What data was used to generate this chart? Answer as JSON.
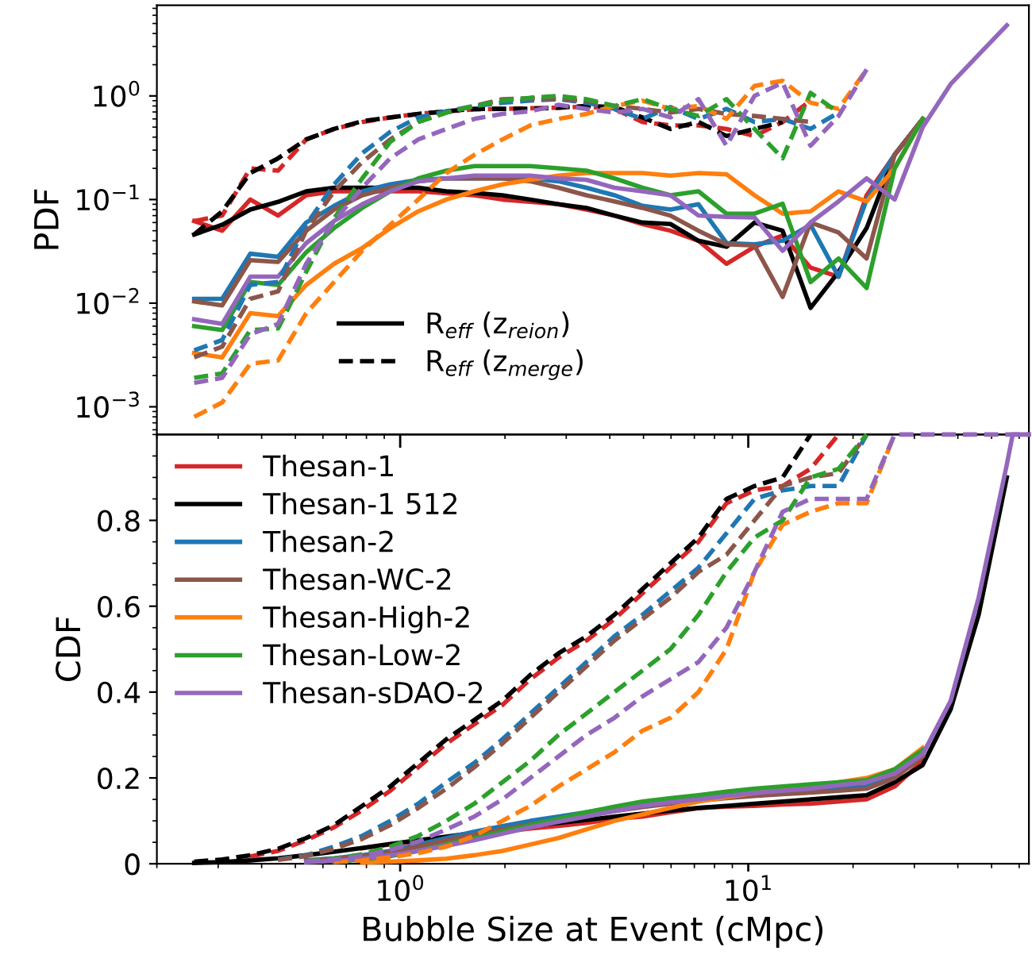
{
  "chart_data": [
    {
      "type": "line",
      "ylabel": "PDF",
      "log": "xy",
      "xlim": [
        0.2,
        64
      ],
      "ylim": [
        0.00054,
        7.5
      ],
      "tick_labels": "y",
      "legend": "bottom",
      "yticks": [
        {
          "value": 0.001,
          "label": "10$^{−3}$"
        },
        {
          "value": 0.01,
          "label": "10$^{−2}$"
        },
        {
          "value": 0.1,
          "label": "10$^{−1}$"
        },
        {
          "value": 1,
          "label": "10$^{0}$"
        }
      ],
      "x": [
        0.256,
        0.308,
        0.371,
        0.446,
        0.537,
        0.646,
        0.778,
        0.936,
        1.127,
        1.357,
        1.633,
        1.966,
        2.366,
        2.848,
        3.428,
        4.126,
        4.966,
        5.977,
        7.194,
        8.66,
        10.42,
        12.55,
        15.1,
        18.17,
        21.88,
        26.33,
        31.7,
        38.15,
        45.9,
        55.3
      ],
      "series": [
        {
          "color": "#d62728",
          "line_style": "solid",
          "values": [
            0.062,
            0.05,
            0.1,
            0.07,
            0.11,
            0.12,
            0.12,
            0.12,
            0.12,
            0.115,
            0.11,
            0.1,
            0.095,
            0.09,
            0.08,
            0.07,
            0.058,
            0.05,
            0.04,
            0.024,
            0.035,
            0.045,
            0.022,
            0.018,
            0.11,
            0.27,
            0.6,
            null,
            null,
            null
          ]
        },
        {
          "name": "R$_{eff}$ (z$_{reion}$)",
          "color": "#000000",
          "line_style": "solid",
          "values": [
            0.046,
            0.057,
            0.08,
            0.095,
            0.12,
            0.13,
            0.13,
            0.13,
            0.13,
            0.12,
            0.116,
            0.11,
            0.1,
            0.09,
            0.083,
            0.07,
            0.06,
            0.058,
            0.04,
            0.035,
            0.06,
            0.05,
            0.009,
            0.02,
            0.053,
            0.27,
            0.6,
            null,
            null,
            null
          ]
        },
        {
          "color": "#1f77b4",
          "line_style": "solid",
          "values": [
            0.011,
            0.011,
            0.03,
            0.028,
            0.06,
            0.087,
            0.12,
            0.14,
            0.155,
            0.16,
            0.16,
            0.16,
            0.16,
            0.15,
            0.13,
            0.11,
            0.087,
            0.08,
            0.09,
            0.038,
            0.037,
            0.04,
            0.057,
            0.018,
            0.1,
            0.27,
            0.6,
            null,
            null,
            null
          ]
        },
        {
          "color": "#8c564b",
          "line_style": "solid",
          "values": [
            0.0104,
            0.0095,
            0.026,
            0.025,
            0.05,
            0.08,
            0.11,
            0.13,
            0.15,
            0.16,
            0.16,
            0.16,
            0.15,
            0.13,
            0.11,
            0.096,
            0.083,
            0.07,
            0.05,
            0.037,
            0.036,
            0.0115,
            0.06,
            0.048,
            0.027,
            0.27,
            0.6,
            null,
            null,
            null
          ]
        },
        {
          "color": "#ff7f0e",
          "line_style": "solid",
          "values": [
            0.0033,
            0.003,
            0.008,
            0.0075,
            0.015,
            0.024,
            0.034,
            0.053,
            0.077,
            0.1,
            0.12,
            0.14,
            0.155,
            0.17,
            0.18,
            0.18,
            0.18,
            0.17,
            0.18,
            0.175,
            0.11,
            0.073,
            0.077,
            0.12,
            0.096,
            0.2,
            0.6,
            null,
            null,
            null
          ]
        },
        {
          "color": "#2ca02c",
          "line_style": "solid",
          "values": [
            0.006,
            0.0055,
            0.016,
            0.015,
            0.031,
            0.053,
            0.083,
            0.12,
            0.16,
            0.19,
            0.21,
            0.21,
            0.21,
            0.2,
            0.19,
            0.16,
            0.13,
            0.11,
            0.12,
            0.073,
            0.073,
            0.091,
            0.016,
            0.027,
            0.014,
            0.2,
            0.6,
            null,
            null,
            null
          ]
        },
        {
          "color": "#9467bd",
          "line_style": "solid",
          "values": [
            0.007,
            0.0063,
            0.018,
            0.018,
            0.038,
            0.062,
            0.09,
            0.12,
            0.15,
            0.16,
            0.17,
            0.17,
            0.17,
            0.16,
            0.155,
            0.13,
            0.12,
            0.11,
            0.07,
            0.068,
            0.067,
            0.032,
            0.06,
            0.096,
            0.16,
            0.1,
            0.5,
            1.3,
            2.5,
            4.8
          ]
        },
        {
          "color": "#d62728",
          "line_style": "dashed",
          "values": [
            0.062,
            0.07,
            0.2,
            0.19,
            0.38,
            0.48,
            0.56,
            0.62,
            0.67,
            0.71,
            0.74,
            0.75,
            0.76,
            0.77,
            0.79,
            0.75,
            0.56,
            0.52,
            0.52,
            0.48,
            0.41,
            0.56,
            0.9,
            null,
            null,
            null,
            null,
            null,
            null,
            null
          ]
        },
        {
          "name": "R$_{eff}$ (z$_{merge}$)",
          "color": "#000000",
          "line_style": "dashed",
          "values": [
            0.046,
            0.077,
            0.18,
            0.25,
            0.38,
            0.48,
            0.57,
            0.62,
            0.67,
            0.71,
            0.75,
            0.75,
            0.75,
            0.77,
            0.8,
            0.78,
            0.62,
            0.48,
            0.56,
            0.41,
            0.48,
            0.56,
            null,
            null,
            null,
            null,
            null,
            null,
            null,
            null
          ]
        },
        {
          "color": "#1f77b4",
          "line_style": "dashed",
          "values": [
            0.0035,
            0.0044,
            0.015,
            0.016,
            0.057,
            0.14,
            0.28,
            0.45,
            0.62,
            0.71,
            0.8,
            0.86,
            0.9,
            0.93,
            0.86,
            0.75,
            0.6,
            0.78,
            0.6,
            0.75,
            0.56,
            0.6,
            0.48,
            0.69,
            null,
            null,
            null,
            null,
            null,
            null
          ]
        },
        {
          "color": "#8c564b",
          "line_style": "dashed",
          "values": [
            0.003,
            0.0038,
            0.011,
            0.013,
            0.05,
            0.12,
            0.23,
            0.38,
            0.56,
            0.69,
            0.8,
            0.93,
            0.95,
            0.93,
            0.9,
            0.8,
            0.75,
            0.69,
            0.75,
            0.67,
            0.64,
            0.6,
            0.56,
            null,
            null,
            null,
            null,
            null,
            null,
            null
          ]
        },
        {
          "color": "#ff7f0e",
          "line_style": "dashed",
          "values": [
            0.0008,
            0.0011,
            0.0026,
            0.0028,
            0.008,
            0.016,
            0.032,
            0.057,
            0.1,
            0.18,
            0.27,
            0.38,
            0.52,
            0.6,
            0.67,
            0.8,
            0.9,
            0.75,
            0.8,
            0.6,
            1.25,
            1.4,
            0.86,
            0.75,
            1.8,
            null,
            null,
            null,
            null,
            null
          ]
        },
        {
          "color": "#2ca02c",
          "line_style": "dashed",
          "values": [
            0.0019,
            0.0021,
            0.0055,
            0.0057,
            0.02,
            0.066,
            0.16,
            0.36,
            0.56,
            0.69,
            0.8,
            0.9,
            0.96,
            1.0,
            0.93,
            0.8,
            0.93,
            0.75,
            0.64,
            0.93,
            0.48,
            0.25,
            1.07,
            0.69,
            null,
            null,
            null,
            null,
            null,
            null
          ]
        },
        {
          "color": "#9467bd",
          "line_style": "dashed",
          "values": [
            0.0017,
            0.0019,
            0.005,
            0.0063,
            0.024,
            0.062,
            0.13,
            0.25,
            0.38,
            0.48,
            0.6,
            0.67,
            0.71,
            0.82,
            0.75,
            0.69,
            0.75,
            0.62,
            0.93,
            0.33,
            1.0,
            1.34,
            0.33,
            0.64,
            1.8,
            null,
            null,
            null,
            null,
            null
          ]
        }
      ]
    },
    {
      "type": "line",
      "ylabel": "CDF",
      "xlabel": "Bubble Size at Event (cMpc)",
      "log": "x",
      "xlim": [
        0.2,
        64
      ],
      "ylim": [
        0,
        1
      ],
      "legend": "top left",
      "xticks": [
        {
          "value": 1,
          "label": "10$^{0}$"
        },
        {
          "value": 10,
          "label": "10$^{1}$"
        }
      ],
      "yticks": [
        0,
        0.2,
        0.4,
        0.6,
        0.8
      ],
      "x": [
        0.256,
        0.308,
        0.371,
        0.446,
        0.537,
        0.646,
        0.778,
        0.936,
        1.127,
        1.357,
        1.633,
        1.966,
        2.366,
        2.848,
        3.428,
        4.126,
        4.966,
        5.977,
        7.194,
        8.66,
        10.42,
        12.55,
        15.1,
        18.17,
        21.88,
        26.33,
        31.7,
        38.15,
        45.9,
        55.3,
        57.5,
        64
      ],
      "series": [
        {
          "name": "Thesan-1",
          "color": "#d62728",
          "line_style": "solid",
          "values": [
            null,
            null,
            null,
            null,
            null,
            null,
            0.036,
            0.045,
            0.053,
            0.06,
            0.068,
            0.075,
            0.082,
            0.088,
            0.095,
            0.105,
            0.11,
            0.12,
            0.13,
            0.133,
            0.135,
            0.138,
            0.14,
            0.145,
            0.15,
            0.18,
            0.24,
            null,
            null,
            null,
            null,
            null
          ]
        },
        {
          "name": "Thesan-1 512",
          "color": "#000000",
          "line_style": "solid",
          "values": [
            0.002,
            0.004,
            0.008,
            0.013,
            0.02,
            0.028,
            0.037,
            0.046,
            0.055,
            0.063,
            0.072,
            0.08,
            0.088,
            0.095,
            0.102,
            0.11,
            0.117,
            0.124,
            0.13,
            0.135,
            0.14,
            0.145,
            0.15,
            0.155,
            0.16,
            0.19,
            0.23,
            0.36,
            0.58,
            0.9,
            null,
            null
          ]
        },
        {
          "name": "Thesan-2",
          "color": "#1f77b4",
          "line_style": "solid",
          "values": [
            null,
            null,
            null,
            null,
            0.008,
            0.013,
            0.02,
            0.03,
            0.045,
            0.06,
            0.075,
            0.088,
            0.1,
            0.11,
            0.12,
            0.13,
            0.14,
            0.148,
            0.155,
            0.16,
            0.165,
            0.168,
            0.17,
            0.175,
            0.18,
            0.21,
            0.26,
            null,
            null,
            null,
            null,
            null
          ]
        },
        {
          "name": "Thesan-WC-2",
          "color": "#8c564b",
          "line_style": "solid",
          "values": [
            null,
            null,
            null,
            null,
            0.007,
            0.012,
            0.018,
            0.027,
            0.04,
            0.055,
            0.068,
            0.08,
            0.092,
            0.103,
            0.113,
            0.123,
            0.132,
            0.14,
            0.147,
            0.153,
            0.158,
            0.162,
            0.166,
            0.17,
            0.175,
            0.2,
            0.25,
            null,
            null,
            null,
            null,
            null
          ]
        },
        {
          "name": "Thesan-High-2",
          "color": "#ff7f0e",
          "line_style": "solid",
          "values": [
            null,
            null,
            null,
            null,
            null,
            null,
            0.003,
            0.005,
            0.008,
            0.012,
            0.02,
            0.03,
            0.045,
            0.06,
            0.08,
            0.1,
            0.115,
            0.13,
            0.145,
            0.155,
            0.165,
            0.175,
            0.18,
            0.19,
            0.2,
            0.22,
            0.27,
            null,
            null,
            null,
            null,
            null
          ]
        },
        {
          "name": "Thesan-Low-2",
          "color": "#2ca02c",
          "line_style": "solid",
          "values": [
            null,
            null,
            null,
            null,
            null,
            0.005,
            0.01,
            0.018,
            0.03,
            0.045,
            0.06,
            0.075,
            0.09,
            0.105,
            0.12,
            0.133,
            0.145,
            0.153,
            0.16,
            0.168,
            0.175,
            0.18,
            0.185,
            0.19,
            0.195,
            0.22,
            0.265,
            null,
            null,
            null,
            null,
            null
          ]
        },
        {
          "name": "Thesan-sDAO-2",
          "color": "#9467bd",
          "line_style": "solid",
          "values": [
            null,
            null,
            null,
            null,
            0.004,
            0.007,
            0.012,
            0.02,
            0.03,
            0.042,
            0.055,
            0.07,
            0.085,
            0.098,
            0.11,
            0.123,
            0.135,
            0.143,
            0.15,
            0.158,
            0.165,
            0.17,
            0.175,
            0.183,
            0.19,
            0.21,
            0.255,
            0.38,
            0.62,
            0.93,
            1.0,
            1.0
          ]
        },
        {
          "color": "#d62728",
          "line_style": "dashed",
          "values": [
            null,
            null,
            0.017,
            0.03,
            0.055,
            0.085,
            0.125,
            0.17,
            0.225,
            0.28,
            0.325,
            0.37,
            0.43,
            0.48,
            0.52,
            0.57,
            0.63,
            0.69,
            0.75,
            0.84,
            0.87,
            0.88,
            0.92,
            1.0,
            null,
            null,
            null,
            null,
            null,
            null,
            null,
            null
          ]
        },
        {
          "color": "#000000",
          "line_style": "dashed",
          "values": [
            0.005,
            0.01,
            0.02,
            0.035,
            0.06,
            0.09,
            0.135,
            0.18,
            0.235,
            0.29,
            0.335,
            0.38,
            0.44,
            0.49,
            0.53,
            0.58,
            0.64,
            0.7,
            0.76,
            0.85,
            0.88,
            0.9,
            1.0,
            null,
            null,
            null,
            null,
            null,
            null,
            null,
            null,
            null
          ]
        },
        {
          "color": "#1f77b4",
          "line_style": "dashed",
          "values": [
            null,
            null,
            null,
            0.01,
            0.02,
            0.04,
            0.065,
            0.1,
            0.14,
            0.19,
            0.235,
            0.29,
            0.35,
            0.41,
            0.47,
            0.53,
            0.58,
            0.635,
            0.69,
            0.77,
            0.85,
            0.87,
            0.88,
            0.88,
            1.0,
            null,
            null,
            null,
            null,
            null,
            null,
            null
          ]
        },
        {
          "color": "#8c564b",
          "line_style": "dashed",
          "values": [
            null,
            null,
            null,
            0.009,
            0.018,
            0.035,
            0.058,
            0.09,
            0.13,
            0.175,
            0.225,
            0.28,
            0.34,
            0.4,
            0.46,
            0.52,
            0.57,
            0.62,
            0.68,
            0.72,
            0.8,
            0.88,
            0.9,
            0.91,
            1.0,
            null,
            null,
            null,
            null,
            null,
            null,
            null
          ]
        },
        {
          "color": "#ff7f0e",
          "line_style": "dashed",
          "values": [
            null,
            null,
            null,
            null,
            null,
            0.004,
            0.008,
            0.015,
            0.025,
            0.04,
            0.065,
            0.1,
            0.135,
            0.18,
            0.22,
            0.26,
            0.31,
            0.34,
            0.4,
            0.5,
            0.68,
            0.79,
            0.82,
            0.84,
            0.84,
            1.0,
            null,
            null,
            null,
            null,
            null,
            null
          ]
        },
        {
          "color": "#2ca02c",
          "line_style": "dashed",
          "values": [
            null,
            null,
            null,
            null,
            0.006,
            0.012,
            0.022,
            0.04,
            0.065,
            0.1,
            0.14,
            0.19,
            0.24,
            0.3,
            0.35,
            0.4,
            0.45,
            0.5,
            0.58,
            0.68,
            0.76,
            0.8,
            0.9,
            0.92,
            1.0,
            null,
            null,
            null,
            null,
            null,
            null,
            null
          ]
        },
        {
          "color": "#9467bd",
          "line_style": "dashed",
          "values": [
            null,
            null,
            null,
            null,
            0.005,
            0.01,
            0.018,
            0.032,
            0.052,
            0.08,
            0.11,
            0.15,
            0.2,
            0.25,
            0.3,
            0.34,
            0.39,
            0.43,
            0.47,
            0.55,
            0.68,
            0.82,
            0.85,
            0.85,
            0.85,
            1.0,
            1.0,
            1.0,
            1.0,
            1.0,
            1.0,
            1.0
          ]
        }
      ]
    }
  ]
}
